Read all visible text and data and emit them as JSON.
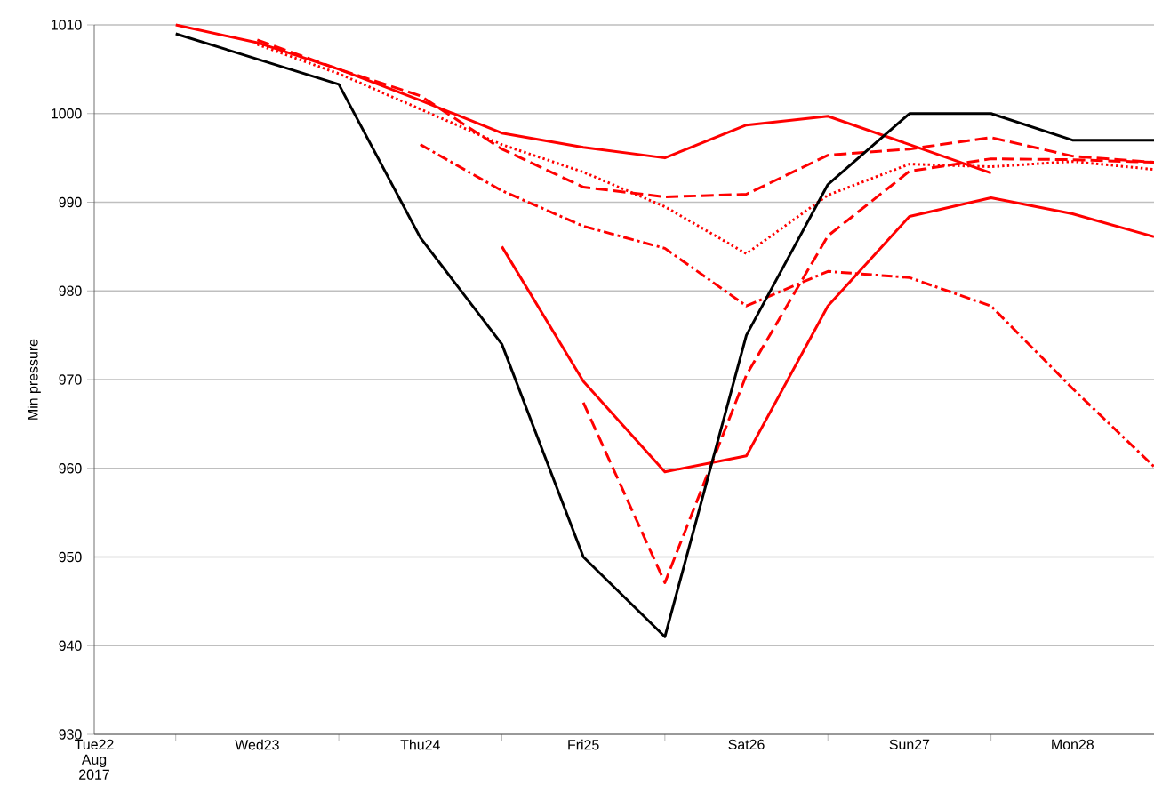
{
  "chart_data": {
    "type": "line",
    "ylabel": "Min pressure",
    "xlim": [
      "2017-08-22T00:00",
      "2017-08-28T12:00"
    ],
    "ylim": [
      930,
      1010
    ],
    "yticks": [
      930,
      940,
      950,
      960,
      970,
      980,
      990,
      1000,
      1010
    ],
    "xticks": [
      {
        "value": "2017-08-22T00:00",
        "label": "Tue22 Aug 2017"
      },
      {
        "value": "2017-08-22T12:00",
        "label": null
      },
      {
        "value": "2017-08-23T00:00",
        "label": "Wed23"
      },
      {
        "value": "2017-08-23T12:00",
        "label": null
      },
      {
        "value": "2017-08-24T00:00",
        "label": "Thu24"
      },
      {
        "value": "2017-08-24T12:00",
        "label": null
      },
      {
        "value": "2017-08-25T00:00",
        "label": "Fri25"
      },
      {
        "value": "2017-08-25T12:00",
        "label": null
      },
      {
        "value": "2017-08-26T00:00",
        "label": "Sat26"
      },
      {
        "value": "2017-08-26T12:00",
        "label": null
      },
      {
        "value": "2017-08-27T00:00",
        "label": "Sun27"
      },
      {
        "value": "2017-08-27T12:00",
        "label": null
      },
      {
        "value": "2017-08-28T00:00",
        "label": "Mon28"
      }
    ],
    "grid": "y",
    "series": [
      {
        "color": "#ff0000",
        "line_style": "solid",
        "x": [
          "2017-08-22T12:00",
          "2017-08-23T00:00",
          "2017-08-23T12:00",
          "2017-08-24T00:00",
          "2017-08-24T12:00",
          "2017-08-25T00:00",
          "2017-08-25T12:00",
          "2017-08-26T00:00",
          "2017-08-26T12:00",
          "2017-08-27T00:00",
          "2017-08-27T12:00"
        ],
        "values": [
          1010,
          1008,
          1005,
          1001.5,
          997.8,
          996.2,
          995,
          998.7,
          999.7,
          996.5,
          993.3
        ]
      },
      {
        "color": "#ff0000",
        "line_style": "dashed",
        "x": [
          "2017-08-23T00:00",
          "2017-08-23T12:00",
          "2017-08-24T00:00",
          "2017-08-24T12:00",
          "2017-08-25T00:00",
          "2017-08-25T12:00",
          "2017-08-26T00:00",
          "2017-08-26T12:00",
          "2017-08-27T00:00",
          "2017-08-27T12:00",
          "2017-08-28T00:00",
          "2017-08-28T12:00"
        ],
        "values": [
          1008.3,
          1005,
          1002,
          996,
          991.7,
          990.6,
          990.9,
          995.3,
          996,
          997.3,
          995.2,
          994.5
        ]
      },
      {
        "color": "#ff0000",
        "line_style": "dotted",
        "x": [
          "2017-08-23T00:00",
          "2017-08-23T12:00",
          "2017-08-24T00:00",
          "2017-08-24T12:00",
          "2017-08-25T00:00",
          "2017-08-25T12:00",
          "2017-08-26T00:00",
          "2017-08-26T12:00",
          "2017-08-27T00:00",
          "2017-08-27T12:00",
          "2017-08-28T00:00",
          "2017-08-28T12:00"
        ],
        "values": [
          1007.8,
          1004.5,
          1000.5,
          996.5,
          993.4,
          989.5,
          984.2,
          990.8,
          994.3,
          994,
          994.6,
          993.7
        ]
      },
      {
        "color": "#ff0000",
        "line_style": "dashdot",
        "x": [
          "2017-08-24T00:00",
          "2017-08-24T12:00",
          "2017-08-25T00:00",
          "2017-08-25T12:00",
          "2017-08-26T00:00",
          "2017-08-26T12:00",
          "2017-08-27T00:00",
          "2017-08-27T12:00",
          "2017-08-28T00:00",
          "2017-08-28T12:00"
        ],
        "values": [
          996.5,
          991.3,
          987.3,
          984.8,
          978.3,
          982.2,
          981.5,
          978.3,
          969,
          960.2
        ]
      },
      {
        "color": "#ff0000",
        "line_style": "solid",
        "x": [
          "2017-08-24T12:00",
          "2017-08-25T00:00",
          "2017-08-25T12:00",
          "2017-08-26T00:00",
          "2017-08-26T12:00",
          "2017-08-27T00:00",
          "2017-08-27T12:00",
          "2017-08-28T00:00",
          "2017-08-28T12:00"
        ],
        "values": [
          985,
          969.8,
          959.6,
          961.4,
          978.3,
          988.4,
          990.5,
          988.7,
          986.1
        ]
      },
      {
        "color": "#ff0000",
        "line_style": "dashed",
        "x": [
          "2017-08-25T00:00",
          "2017-08-25T12:00",
          "2017-08-26T00:00",
          "2017-08-26T12:00",
          "2017-08-27T00:00",
          "2017-08-27T12:00",
          "2017-08-28T00:00",
          "2017-08-28T12:00"
        ],
        "values": [
          967.4,
          947.1,
          970.5,
          986.2,
          993.5,
          994.9,
          994.8,
          994.5
        ]
      },
      {
        "color": "#000000",
        "line_style": "solid",
        "x": [
          "2017-08-22T12:00",
          "2017-08-23T12:00",
          "2017-08-24T00:00",
          "2017-08-24T12:00",
          "2017-08-25T00:00",
          "2017-08-25T12:00",
          "2017-08-26T00:00",
          "2017-08-26T12:00",
          "2017-08-27T00:00",
          "2017-08-27T12:00",
          "2017-08-28T00:00",
          "2017-08-28T12:00"
        ],
        "values": [
          1009,
          1003.3,
          986,
          974,
          950,
          941,
          975,
          992,
          1000,
          1000,
          997,
          997
        ]
      }
    ]
  }
}
